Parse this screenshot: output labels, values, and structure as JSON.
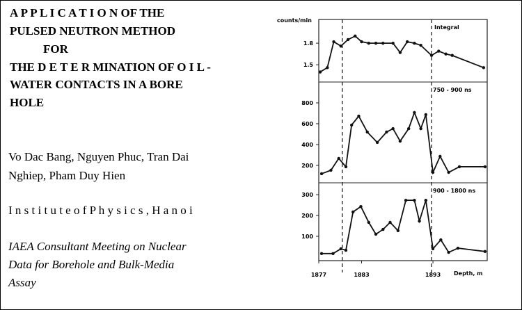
{
  "title_lines": [
    "A P P L I C A T I O N OF THE",
    "PULSED NEUTRON METHOD",
    "FOR",
    "THE D E T E R MINATION OF O I L -",
    "WATER CONTACTS IN A BORE",
    "HOLE"
  ],
  "authors": [
    "Vo Dac Bang, Nguyen Phuc, Tran Dai",
    "Nghiep, Pham Duy Hien"
  ],
  "institute": "I n s t i t u t e o f P h y s i c s , H a n o i",
  "meeting": [
    "IAEA Consultant Meeting on Nuclear",
    "Data for Borehole and Bulk-Media",
    "Assay"
  ],
  "figure": {
    "type": "line",
    "y_label": "counts/min",
    "x_label": "Depth, m",
    "xlim": [
      1877,
      1900.6
    ],
    "xticks": [
      1877,
      1883,
      1893
    ],
    "boundaries": [
      1880.3,
      1892.8
    ],
    "panels": [
      {
        "label": "Integral",
        "ylim": [
          1.26,
          2.13
        ],
        "yticks": [
          1.5,
          1.8
        ],
        "x": [
          1877.2,
          1878.2,
          1879.1,
          1880.1,
          1881.1,
          1882.1,
          1883.0,
          1884.0,
          1885.0,
          1886.0,
          1887.4,
          1888.4,
          1889.4,
          1890.4,
          1891.3,
          1892.8,
          1893.8,
          1894.8,
          1895.7,
          1900.1
        ],
        "values": [
          1.4,
          1.46,
          1.82,
          1.76,
          1.85,
          1.9,
          1.82,
          1.8,
          1.8,
          1.8,
          1.8,
          1.67,
          1.82,
          1.8,
          1.77,
          1.63,
          1.69,
          1.65,
          1.63,
          1.46
        ]
      },
      {
        "label": "750 - 900 ns",
        "ylim": [
          33,
          1000
        ],
        "yticks": [
          200,
          400,
          600,
          800
        ],
        "x": [
          1877.4,
          1878.7,
          1879.8,
          1880.8,
          1881.6,
          1882.6,
          1883.8,
          1885.2,
          1886.5,
          1887.4,
          1888.4,
          1889.6,
          1890.4,
          1891.3,
          1892.0,
          1893.0,
          1894.0,
          1895.2,
          1896.7,
          1900.3
        ],
        "values": [
          120,
          153,
          267,
          187,
          587,
          673,
          520,
          420,
          520,
          553,
          433,
          553,
          707,
          553,
          687,
          133,
          287,
          133,
          187,
          187
        ]
      },
      {
        "label": "900 - 1800 ns",
        "ylim": [
          -17,
          357
        ],
        "yticks": [
          100,
          200,
          300
        ],
        "x": [
          1877.4,
          1879.0,
          1880.1,
          1880.8,
          1881.8,
          1882.9,
          1884.0,
          1885.0,
          1886.0,
          1887.0,
          1888.1,
          1889.2,
          1890.4,
          1891.1,
          1892.0,
          1893.0,
          1894.1,
          1895.2,
          1896.5,
          1900.3
        ],
        "values": [
          17,
          17,
          40,
          33,
          217,
          243,
          167,
          110,
          133,
          167,
          127,
          273,
          273,
          173,
          273,
          40,
          83,
          23,
          43,
          27
        ]
      }
    ]
  }
}
